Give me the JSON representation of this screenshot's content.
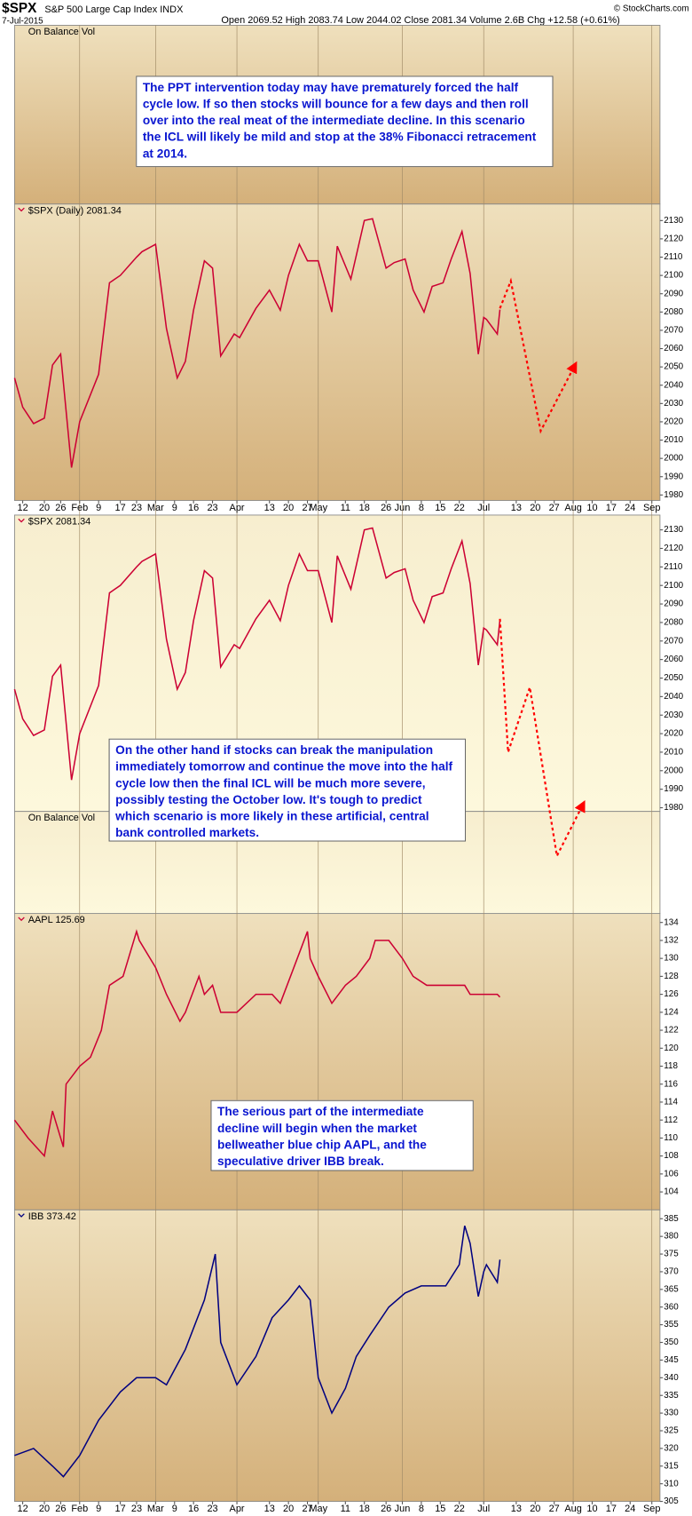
{
  "header": {
    "symbol": "$SPX",
    "name": "S&P 500 Large Cap Index INDX",
    "date": "7-Jul-2015",
    "quote": "Open 2069.52 High 2083.74 Low 2044.02 Close 2081.34 Volume 2.6B Chg +12.58 (+0.61%)",
    "credit": "© StockCharts.com"
  },
  "chart_data": [
    {
      "type": "indicator",
      "label": "On Balance Vol",
      "annotation": "The PPT intervention today may have prematurely forced the half cycle low. If so then stocks will bounce for a few days and then roll over into the real meat of the intermediate decline. In this scenario the ICL will likely be mild and stop at the 38% Fibonacci retracement at 2014."
    },
    {
      "type": "line",
      "label": "$SPX (Daily) 2081.34",
      "color": "#cc0033",
      "xlim": [
        "2015-01-09",
        "2015-09-04"
      ],
      "ylim": [
        1977,
        2139
      ],
      "yticks": [
        1980,
        1990,
        2000,
        2010,
        2020,
        2030,
        2040,
        2050,
        2060,
        2070,
        2080,
        2090,
        2100,
        2110,
        2120,
        2130
      ],
      "xticks": [
        {
          "value": "2015-01-12",
          "label": "12"
        },
        {
          "value": "2015-01-20",
          "label": "20"
        },
        {
          "value": "2015-01-26",
          "label": "26"
        },
        {
          "value": "2015-02-02",
          "label": "Feb"
        },
        {
          "value": "2015-02-09",
          "label": "9"
        },
        {
          "value": "2015-02-17",
          "label": "17"
        },
        {
          "value": "2015-02-23",
          "label": "23"
        },
        {
          "value": "2015-03-02",
          "label": "Mar"
        },
        {
          "value": "2015-03-09",
          "label": "9"
        },
        {
          "value": "2015-03-16",
          "label": "16"
        },
        {
          "value": "2015-03-23",
          "label": "23"
        },
        {
          "value": "2015-04-01",
          "label": "Apr"
        },
        {
          "value": "2015-04-13",
          "label": "13"
        },
        {
          "value": "2015-04-20",
          "label": "20"
        },
        {
          "value": "2015-04-27",
          "label": "27"
        },
        {
          "value": "2015-05-01",
          "label": "May"
        },
        {
          "value": "2015-05-11",
          "label": "11"
        },
        {
          "value": "2015-05-18",
          "label": "18"
        },
        {
          "value": "2015-05-26",
          "label": "26"
        },
        {
          "value": "2015-06-01",
          "label": "Jun"
        },
        {
          "value": "2015-06-08",
          "label": "8"
        },
        {
          "value": "2015-06-15",
          "label": "15"
        },
        {
          "value": "2015-06-22",
          "label": "22"
        },
        {
          "value": "2015-07-01",
          "label": "Jul"
        },
        {
          "value": "2015-07-13",
          "label": "13"
        },
        {
          "value": "2015-07-20",
          "label": "20"
        },
        {
          "value": "2015-07-27",
          "label": "27"
        },
        {
          "value": "2015-08-03",
          "label": "Aug"
        },
        {
          "value": "2015-08-10",
          "label": "10"
        },
        {
          "value": "2015-08-17",
          "label": "17"
        },
        {
          "value": "2015-08-24",
          "label": "24"
        },
        {
          "value": "2015-09-01",
          "label": "Sep"
        }
      ],
      "x": [
        "2015-01-09",
        "2015-01-12",
        "2015-01-16",
        "2015-01-20",
        "2015-01-23",
        "2015-01-26",
        "2015-01-30",
        "2015-02-02",
        "2015-02-09",
        "2015-02-13",
        "2015-02-17",
        "2015-02-23",
        "2015-02-25",
        "2015-03-02",
        "2015-03-06",
        "2015-03-10",
        "2015-03-13",
        "2015-03-16",
        "2015-03-20",
        "2015-03-23",
        "2015-03-26",
        "2015-03-31",
        "2015-04-02",
        "2015-04-08",
        "2015-04-13",
        "2015-04-17",
        "2015-04-20",
        "2015-04-24",
        "2015-04-27",
        "2015-05-01",
        "2015-05-06",
        "2015-05-08",
        "2015-05-13",
        "2015-05-18",
        "2015-05-21",
        "2015-05-26",
        "2015-05-29",
        "2015-06-02",
        "2015-06-05",
        "2015-06-09",
        "2015-06-12",
        "2015-06-16",
        "2015-06-19",
        "2015-06-23",
        "2015-06-26",
        "2015-06-29",
        "2015-07-01",
        "2015-07-02",
        "2015-07-06",
        "2015-07-07"
      ],
      "series": [
        {
          "color": "#cc0033",
          "values": [
            2044,
            2028,
            2019,
            2022,
            2051,
            2057,
            1995,
            2020,
            2046,
            2096,
            2100,
            2110,
            2113,
            2117,
            2071,
            2044,
            2053,
            2081,
            2108,
            2104,
            2056,
            2068,
            2066,
            2082,
            2092,
            2081,
            2100,
            2117,
            2108,
            2108,
            2080,
            2116,
            2098,
            2130,
            2131,
            2104,
            2107,
            2109,
            2092,
            2080,
            2094,
            2096,
            2109,
            2124,
            2101,
            2057,
            2077,
            2076,
            2068,
            2081.34
          ]
        },
        {
          "color": "#ff0000",
          "dashed": true,
          "x": [
            "2015-07-07",
            "2015-07-11",
            "2015-07-22",
            "2015-08-04"
          ],
          "values": [
            2082,
            2097,
            2015,
            2052
          ]
        }
      ]
    },
    {
      "type": "line",
      "label": "$SPX 2081.34",
      "obv_label": "On Balance Vol",
      "color": "#cc0033",
      "xlim": [
        "2015-01-09",
        "2015-09-04"
      ],
      "ylim": [
        1978,
        2138
      ],
      "yticks": [
        1980,
        1990,
        2000,
        2010,
        2020,
        2030,
        2040,
        2050,
        2060,
        2070,
        2080,
        2090,
        2100,
        2110,
        2120,
        2130
      ],
      "annotation": "On the other hand if stocks can break the manipulation immediately tomorrow and continue the move into the half cycle low then the final ICL will be much more severe, possibly testing the October low. It's tough to predict which scenario is more likely in these artificial, central bank controlled markets.",
      "x": [
        "2015-01-09",
        "2015-01-12",
        "2015-01-16",
        "2015-01-20",
        "2015-01-23",
        "2015-01-26",
        "2015-01-30",
        "2015-02-02",
        "2015-02-09",
        "2015-02-13",
        "2015-02-17",
        "2015-02-23",
        "2015-02-25",
        "2015-03-02",
        "2015-03-06",
        "2015-03-10",
        "2015-03-13",
        "2015-03-16",
        "2015-03-20",
        "2015-03-23",
        "2015-03-26",
        "2015-03-31",
        "2015-04-02",
        "2015-04-08",
        "2015-04-13",
        "2015-04-17",
        "2015-04-20",
        "2015-04-24",
        "2015-04-27",
        "2015-05-01",
        "2015-05-06",
        "2015-05-08",
        "2015-05-13",
        "2015-05-18",
        "2015-05-21",
        "2015-05-26",
        "2015-05-29",
        "2015-06-02",
        "2015-06-05",
        "2015-06-09",
        "2015-06-12",
        "2015-06-16",
        "2015-06-19",
        "2015-06-23",
        "2015-06-26",
        "2015-06-29",
        "2015-07-01",
        "2015-07-02",
        "2015-07-06",
        "2015-07-07"
      ],
      "series": [
        {
          "color": "#cc0033",
          "values": [
            2044,
            2028,
            2019,
            2022,
            2051,
            2057,
            1995,
            2020,
            2046,
            2096,
            2100,
            2110,
            2113,
            2117,
            2071,
            2044,
            2053,
            2081,
            2108,
            2104,
            2056,
            2068,
            2066,
            2082,
            2092,
            2081,
            2100,
            2117,
            2108,
            2108,
            2080,
            2116,
            2098,
            2130,
            2131,
            2104,
            2107,
            2109,
            2092,
            2080,
            2094,
            2096,
            2109,
            2124,
            2101,
            2057,
            2077,
            2076,
            2068,
            2081.34
          ]
        },
        {
          "color": "#ff0000",
          "dashed": true,
          "x": [
            "2015-07-07",
            "2015-07-10",
            "2015-07-18",
            "2015-07-28",
            "2015-08-07"
          ],
          "values": [
            2082,
            2010,
            2045,
            1954,
            1983
          ]
        }
      ]
    },
    {
      "type": "line",
      "label": "AAPL 125.69",
      "color": "#cc0033",
      "xlim": [
        "2015-01-09",
        "2015-09-04"
      ],
      "ylim": [
        102,
        135
      ],
      "yticks": [
        104,
        106,
        108,
        110,
        112,
        114,
        116,
        118,
        120,
        122,
        124,
        126,
        128,
        130,
        132,
        134
      ],
      "annotation": "The serious part of the intermediate decline will begin when the market bellweather blue chip AAPL, and the speculative driver IBB break.",
      "x": [
        "2015-01-09",
        "2015-01-14",
        "2015-01-20",
        "2015-01-23",
        "2015-01-27",
        "2015-01-28",
        "2015-02-02",
        "2015-02-06",
        "2015-02-10",
        "2015-02-13",
        "2015-02-18",
        "2015-02-23",
        "2015-02-24",
        "2015-03-02",
        "2015-03-06",
        "2015-03-11",
        "2015-03-13",
        "2015-03-18",
        "2015-03-20",
        "2015-03-23",
        "2015-03-26",
        "2015-04-01",
        "2015-04-08",
        "2015-04-14",
        "2015-04-17",
        "2015-04-22",
        "2015-04-27",
        "2015-04-28",
        "2015-05-01",
        "2015-05-06",
        "2015-05-11",
        "2015-05-15",
        "2015-05-20",
        "2015-05-22",
        "2015-05-27",
        "2015-06-01",
        "2015-06-05",
        "2015-06-10",
        "2015-06-15",
        "2015-06-19",
        "2015-06-24",
        "2015-06-26",
        "2015-07-01",
        "2015-07-02",
        "2015-07-06",
        "2015-07-07"
      ],
      "series": [
        {
          "color": "#cc0033",
          "values": [
            112,
            110,
            108,
            113,
            109,
            116,
            118,
            119,
            122,
            127,
            128,
            133,
            132,
            129,
            126,
            123,
            124,
            128,
            126,
            127,
            124,
            124,
            126,
            126,
            125,
            129,
            133,
            130,
            128,
            125,
            127,
            128,
            130,
            132,
            132,
            130,
            128,
            127,
            127,
            127,
            127,
            126,
            126,
            126,
            126,
            125.69
          ]
        }
      ]
    },
    {
      "type": "line",
      "label": "IBB 373.42",
      "color": "#000080",
      "xlim": [
        "2015-01-09",
        "2015-09-04"
      ],
      "ylim": [
        305,
        387.5
      ],
      "yticks": [
        305,
        310,
        315,
        320,
        325,
        330,
        335,
        340,
        345,
        350,
        355,
        360,
        365,
        370,
        375,
        380,
        385
      ],
      "xticks": [
        {
          "value": "2015-01-12",
          "label": "12"
        },
        {
          "value": "2015-01-20",
          "label": "20"
        },
        {
          "value": "2015-01-26",
          "label": "26"
        },
        {
          "value": "2015-02-02",
          "label": "Feb"
        },
        {
          "value": "2015-02-09",
          "label": "9"
        },
        {
          "value": "2015-02-17",
          "label": "17"
        },
        {
          "value": "2015-02-23",
          "label": "23"
        },
        {
          "value": "2015-03-02",
          "label": "Mar"
        },
        {
          "value": "2015-03-09",
          "label": "9"
        },
        {
          "value": "2015-03-16",
          "label": "16"
        },
        {
          "value": "2015-03-23",
          "label": "23"
        },
        {
          "value": "2015-04-01",
          "label": "Apr"
        },
        {
          "value": "2015-04-13",
          "label": "13"
        },
        {
          "value": "2015-04-20",
          "label": "20"
        },
        {
          "value": "2015-04-27",
          "label": "27"
        },
        {
          "value": "2015-05-01",
          "label": "May"
        },
        {
          "value": "2015-05-11",
          "label": "11"
        },
        {
          "value": "2015-05-18",
          "label": "18"
        },
        {
          "value": "2015-05-26",
          "label": "26"
        },
        {
          "value": "2015-06-01",
          "label": "Jun"
        },
        {
          "value": "2015-06-08",
          "label": "8"
        },
        {
          "value": "2015-06-15",
          "label": "15"
        },
        {
          "value": "2015-06-22",
          "label": "22"
        },
        {
          "value": "2015-07-01",
          "label": "Jul"
        },
        {
          "value": "2015-07-13",
          "label": "13"
        },
        {
          "value": "2015-07-20",
          "label": "20"
        },
        {
          "value": "2015-07-27",
          "label": "27"
        },
        {
          "value": "2015-08-03",
          "label": "Aug"
        },
        {
          "value": "2015-08-10",
          "label": "10"
        },
        {
          "value": "2015-08-17",
          "label": "17"
        },
        {
          "value": "2015-08-24",
          "label": "24"
        },
        {
          "value": "2015-09-01",
          "label": "Sep"
        }
      ],
      "x": [
        "2015-01-09",
        "2015-01-16",
        "2015-01-23",
        "2015-01-27",
        "2015-02-02",
        "2015-02-09",
        "2015-02-17",
        "2015-02-23",
        "2015-03-02",
        "2015-03-06",
        "2015-03-13",
        "2015-03-20",
        "2015-03-24",
        "2015-03-26",
        "2015-04-01",
        "2015-04-08",
        "2015-04-14",
        "2015-04-20",
        "2015-04-24",
        "2015-04-28",
        "2015-05-01",
        "2015-05-06",
        "2015-05-11",
        "2015-05-15",
        "2015-05-20",
        "2015-05-27",
        "2015-06-02",
        "2015-06-08",
        "2015-06-12",
        "2015-06-17",
        "2015-06-22",
        "2015-06-24",
        "2015-06-26",
        "2015-06-29",
        "2015-07-01",
        "2015-07-02",
        "2015-07-06",
        "2015-07-07"
      ],
      "series": [
        {
          "color": "#000080",
          "values": [
            318,
            320,
            315,
            312,
            318,
            328,
            336,
            340,
            340,
            338,
            348,
            362,
            375,
            350,
            338,
            346,
            357,
            362,
            366,
            362,
            340,
            330,
            337,
            346,
            352,
            360,
            364,
            366,
            366,
            366,
            372,
            383,
            378,
            363,
            370,
            372,
            367,
            373.42
          ]
        }
      ]
    }
  ]
}
